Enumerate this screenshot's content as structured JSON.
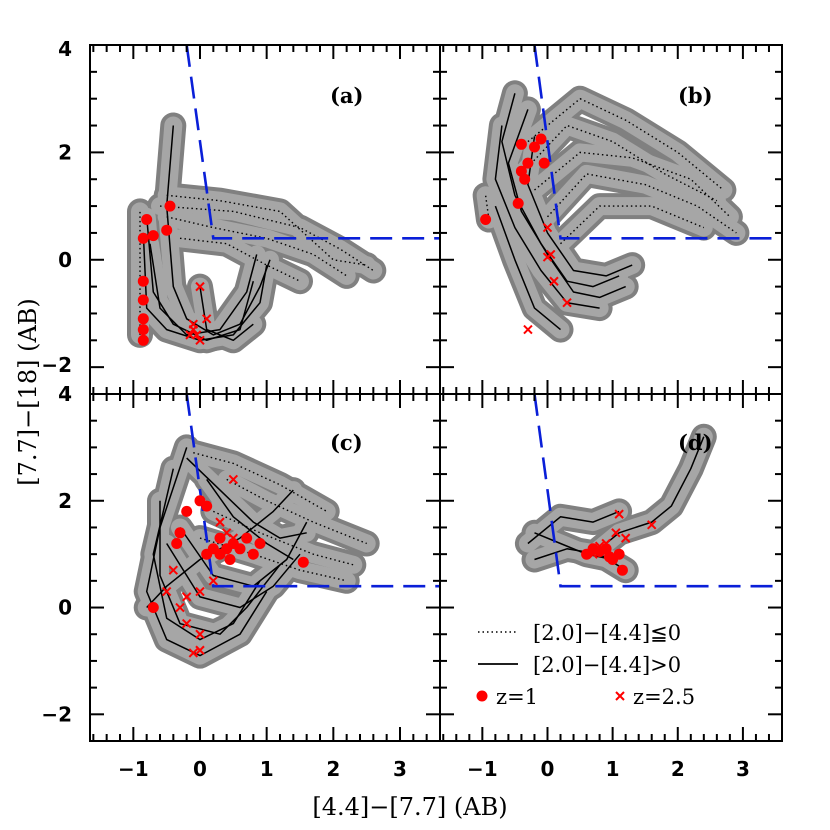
{
  "chart_data": {
    "type": "line",
    "xlabel": "[4.4]−[7.7] (AB)",
    "ylabel": "[7.7]−[18] (AB)",
    "xlim": [
      -1.65,
      3.6
    ],
    "ylim": [
      -2.5,
      4.0
    ],
    "x_ticks": [
      {
        "value": -1,
        "label": "−1"
      },
      {
        "value": 0,
        "label": "0"
      },
      {
        "value": 1,
        "label": "1"
      },
      {
        "value": 2,
        "label": "2"
      },
      {
        "value": 3,
        "label": "3"
      }
    ],
    "y_ticks": [
      {
        "value": -2,
        "label": "−2"
      },
      {
        "value": 0,
        "label": "0"
      },
      {
        "value": 2,
        "label": "2"
      },
      {
        "value": 4,
        "label": "4"
      }
    ],
    "selection_wedge": {
      "description": "dashed blue boundary",
      "color": "#0a1fd8",
      "points": [
        [
          -0.2,
          4.0
        ],
        [
          0.2,
          0.4
        ],
        [
          3.6,
          0.4
        ]
      ]
    },
    "legend": {
      "dotted_label": "[2.0]−[4.4]≦0",
      "solid_label": "[2.0]−[4.4]>0",
      "z1_label": "z=1",
      "z25_label": "z=2.5"
    },
    "colors": {
      "track": "#a6a6a6",
      "track_edge": "#808080",
      "marker": "#ff0000",
      "wedge": "#0a1fd8"
    },
    "panels": [
      {
        "label": "(a)",
        "dotted": [
          [
            [
              -0.5,
              1.2
            ],
            [
              0.3,
              1.1
            ],
            [
              1.2,
              0.9
            ],
            [
              2.0,
              0.0
            ],
            [
              2.5,
              -0.1
            ]
          ],
          [
            [
              -0.6,
              1.0
            ],
            [
              0.5,
              0.9
            ],
            [
              1.5,
              0.6
            ],
            [
              2.1,
              0.2
            ],
            [
              2.6,
              -0.2
            ]
          ],
          [
            [
              -0.5,
              0.8
            ],
            [
              0.2,
              0.6
            ],
            [
              1.0,
              0.4
            ],
            [
              1.7,
              0.1
            ],
            [
              2.2,
              -0.3
            ]
          ],
          [
            [
              -0.3,
              0.4
            ],
            [
              0.4,
              0.3
            ],
            [
              1.0,
              -0.1
            ],
            [
              1.5,
              -0.4
            ]
          ],
          [
            [
              -0.9,
              -1.4
            ],
            [
              -0.9,
              0.9
            ]
          ]
        ],
        "solid": [
          [
            [
              -0.4,
              2.5
            ],
            [
              -0.5,
              1.0
            ],
            [
              -0.4,
              -0.5
            ],
            [
              -0.2,
              -1.1
            ],
            [
              0.2,
              -1.4
            ],
            [
              0.6,
              -1.2
            ],
            [
              0.9,
              -0.5
            ],
            [
              1.05,
              0.0
            ]
          ],
          [
            [
              -0.8,
              0.8
            ],
            [
              -0.7,
              -0.6
            ],
            [
              -0.4,
              -1.2
            ],
            [
              0.1,
              -1.5
            ],
            [
              0.6,
              -1.3
            ],
            [
              0.8,
              -0.4
            ]
          ],
          [
            [
              -0.85,
              0.5
            ],
            [
              -0.8,
              -0.9
            ],
            [
              -0.5,
              -1.3
            ],
            [
              0.0,
              -1.5
            ],
            [
              0.5,
              -1.4
            ],
            [
              0.9,
              -0.8
            ],
            [
              1.0,
              -0.1
            ]
          ],
          [
            [
              -0.75,
              0.3
            ],
            [
              -0.6,
              -0.9
            ],
            [
              -0.2,
              -1.4
            ],
            [
              0.3,
              -1.3
            ],
            [
              0.7,
              -0.6
            ],
            [
              0.85,
              0.1
            ]
          ],
          [
            [
              0.0,
              -0.5
            ],
            [
              0.1,
              -1.3
            ],
            [
              0.5,
              -1.5
            ],
            [
              0.8,
              -1.2
            ]
          ]
        ],
        "z1": [
          [
            -0.85,
            -1.5
          ],
          [
            -0.85,
            -1.3
          ],
          [
            -0.85,
            -1.1
          ],
          [
            -0.85,
            -0.75
          ],
          [
            -0.85,
            -0.4
          ],
          [
            -0.85,
            0.4
          ],
          [
            -0.8,
            0.75
          ],
          [
            -0.7,
            0.45
          ],
          [
            -0.5,
            0.55
          ],
          [
            -0.45,
            1.0
          ]
        ],
        "z25": [
          [
            0.0,
            -0.5
          ],
          [
            -0.1,
            -1.2
          ],
          [
            -0.15,
            -1.4
          ],
          [
            0.0,
            -1.5
          ],
          [
            -0.1,
            -1.3
          ],
          [
            0.1,
            -1.1
          ],
          [
            -0.05,
            -1.4
          ]
        ]
      },
      {
        "label": "(b)",
        "dotted": [
          [
            [
              -0.3,
              2.2
            ],
            [
              0.5,
              3.0
            ],
            [
              1.2,
              2.6
            ],
            [
              2.0,
              2.0
            ],
            [
              2.7,
              1.3
            ]
          ],
          [
            [
              -0.4,
              1.6
            ],
            [
              0.3,
              2.5
            ],
            [
              1.0,
              2.2
            ],
            [
              1.8,
              1.6
            ],
            [
              2.6,
              1.1
            ]
          ],
          [
            [
              -0.2,
              1.3
            ],
            [
              0.5,
              2.0
            ],
            [
              1.3,
              1.9
            ],
            [
              2.2,
              1.5
            ],
            [
              2.8,
              0.8
            ]
          ],
          [
            [
              0.0,
              0.8
            ],
            [
              0.6,
              1.6
            ],
            [
              1.5,
              1.4
            ],
            [
              2.3,
              1.0
            ],
            [
              2.9,
              0.5
            ]
          ],
          [
            [
              0.2,
              0.3
            ],
            [
              0.8,
              1.0
            ],
            [
              1.6,
              1.0
            ],
            [
              2.4,
              0.6
            ]
          ],
          [
            [
              -0.9,
              0.75
            ],
            [
              -0.95,
              1.2
            ]
          ]
        ],
        "solid": [
          [
            [
              -0.5,
              3.1
            ],
            [
              -0.7,
              2.2
            ],
            [
              -0.5,
              1.2
            ],
            [
              -0.1,
              0.3
            ],
            [
              0.3,
              -0.4
            ],
            [
              0.7,
              -0.5
            ],
            [
              1.1,
              -0.3
            ]
          ],
          [
            [
              -0.3,
              2.8
            ],
            [
              -0.6,
              1.8
            ],
            [
              -0.4,
              0.9
            ],
            [
              0.0,
              0.1
            ],
            [
              0.4,
              -0.6
            ],
            [
              0.8,
              -0.7
            ],
            [
              1.2,
              -0.5
            ]
          ],
          [
            [
              -0.7,
              2.5
            ],
            [
              -0.8,
              1.5
            ],
            [
              -0.5,
              0.6
            ],
            [
              -0.1,
              -0.2
            ],
            [
              0.3,
              -0.8
            ],
            [
              0.8,
              -0.9
            ]
          ],
          [
            [
              -0.8,
              1.0
            ],
            [
              -0.5,
              0.0
            ],
            [
              -0.2,
              -0.9
            ],
            [
              0.2,
              -1.3
            ]
          ],
          [
            [
              -0.2,
              2.3
            ],
            [
              -0.3,
              1.4
            ],
            [
              0.0,
              0.5
            ],
            [
              0.4,
              -0.2
            ],
            [
              0.9,
              -0.3
            ],
            [
              1.3,
              -0.1
            ]
          ]
        ],
        "z1": [
          [
            -0.95,
            0.75
          ],
          [
            -0.45,
            1.05
          ],
          [
            -0.35,
            1.5
          ],
          [
            -0.4,
            1.65
          ],
          [
            -0.3,
            1.8
          ],
          [
            -0.2,
            2.1
          ],
          [
            -0.4,
            2.15
          ],
          [
            -0.1,
            2.25
          ],
          [
            -0.05,
            1.8
          ]
        ],
        "z25": [
          [
            0.0,
            0.6
          ],
          [
            0.0,
            0.05
          ],
          [
            0.1,
            -0.4
          ],
          [
            0.3,
            -0.8
          ],
          [
            -0.3,
            -1.3
          ],
          [
            0.05,
            0.1
          ]
        ]
      },
      {
        "label": "(c)",
        "dotted": [
          [
            [
              0.4,
              2.4
            ],
            [
              1.0,
              2.0
            ],
            [
              1.7,
              1.6
            ],
            [
              2.5,
              1.2
            ]
          ],
          [
            [
              0.2,
              1.8
            ],
            [
              0.9,
              1.4
            ],
            [
              1.7,
              1.0
            ],
            [
              2.3,
              0.8
            ]
          ],
          [
            [
              -0.1,
              2.9
            ],
            [
              0.5,
              2.7
            ],
            [
              1.2,
              2.3
            ],
            [
              1.9,
              1.8
            ]
          ],
          [
            [
              0.0,
              1.3
            ],
            [
              0.8,
              1.0
            ],
            [
              1.5,
              0.7
            ],
            [
              2.2,
              0.5
            ]
          ]
        ],
        "solid": [
          [
            [
              -0.2,
              3.0
            ],
            [
              -0.6,
              1.5
            ],
            [
              -0.8,
              0.3
            ],
            [
              -0.5,
              -0.6
            ],
            [
              0.0,
              -0.9
            ],
            [
              0.6,
              -0.5
            ],
            [
              1.0,
              0.3
            ]
          ],
          [
            [
              -0.4,
              2.6
            ],
            [
              -0.7,
              1.0
            ],
            [
              -0.5,
              -0.2
            ],
            [
              0.0,
              -0.6
            ],
            [
              0.5,
              -0.3
            ],
            [
              0.9,
              0.5
            ]
          ],
          [
            [
              -0.6,
              2.0
            ],
            [
              -0.6,
              0.6
            ],
            [
              -0.3,
              -0.3
            ],
            [
              0.3,
              -0.5
            ],
            [
              0.7,
              0.0
            ],
            [
              1.2,
              0.8
            ]
          ],
          [
            [
              -0.3,
              1.5
            ],
            [
              0.2,
              0.6
            ],
            [
              0.8,
              0.4
            ],
            [
              1.3,
              0.9
            ],
            [
              1.6,
              1.6
            ]
          ],
          [
            [
              -0.5,
              1.2
            ],
            [
              0.0,
              0.2
            ],
            [
              0.6,
              0.0
            ],
            [
              1.1,
              0.4
            ],
            [
              1.5,
              1.0
            ]
          ],
          [
            [
              -0.8,
              0.0
            ],
            [
              -0.5,
              0.4
            ],
            [
              0.0,
              0.9
            ],
            [
              0.6,
              1.3
            ],
            [
              1.1,
              1.8
            ],
            [
              1.4,
              2.2
            ]
          ],
          [
            [
              0.1,
              2.4
            ],
            [
              0.5,
              1.7
            ],
            [
              1.0,
              1.2
            ],
            [
              1.4,
              0.9
            ]
          ],
          [
            [
              -0.2,
              2.8
            ],
            [
              0.3,
              2.2
            ],
            [
              0.8,
              1.6
            ],
            [
              1.2,
              1.3
            ],
            [
              1.6,
              1.4
            ]
          ]
        ],
        "z1": [
          [
            -0.7,
            0.0
          ],
          [
            -0.35,
            1.2
          ],
          [
            -0.3,
            1.4
          ],
          [
            -0.2,
            1.8
          ],
          [
            0.0,
            2.0
          ],
          [
            0.1,
            1.9
          ],
          [
            0.1,
            1.0
          ],
          [
            0.2,
            1.1
          ],
          [
            0.3,
            1.0
          ],
          [
            0.4,
            1.1
          ],
          [
            0.5,
            1.2
          ],
          [
            0.6,
            1.1
          ],
          [
            0.7,
            1.3
          ],
          [
            0.8,
            1.0
          ],
          [
            0.9,
            1.2
          ],
          [
            0.3,
            1.3
          ],
          [
            0.45,
            0.9
          ],
          [
            1.55,
            0.85
          ]
        ],
        "z25": [
          [
            0.5,
            2.4
          ],
          [
            -0.5,
            0.3
          ],
          [
            -0.3,
            0.0
          ],
          [
            -0.2,
            -0.3
          ],
          [
            0.0,
            -0.5
          ],
          [
            0.0,
            -0.8
          ],
          [
            -0.1,
            -0.85
          ],
          [
            0.2,
            0.5
          ],
          [
            -0.2,
            0.2
          ],
          [
            0.4,
            1.4
          ],
          [
            0.5,
            1.3
          ],
          [
            0.0,
            0.3
          ],
          [
            -0.4,
            0.7
          ],
          [
            0.3,
            1.6
          ]
        ]
      },
      {
        "label": "(d)",
        "dotted": [],
        "solid": [
          [
            [
              0.7,
              1.0
            ],
            [
              1.1,
              1.4
            ],
            [
              1.6,
              1.6
            ],
            [
              1.9,
              1.9
            ],
            [
              2.2,
              2.6
            ],
            [
              2.4,
              3.2
            ]
          ],
          [
            [
              -0.3,
              1.2
            ],
            [
              0.2,
              1.7
            ],
            [
              0.7,
              1.6
            ],
            [
              1.1,
              1.8
            ]
          ],
          [
            [
              -0.2,
              0.9
            ],
            [
              0.3,
              1.1
            ],
            [
              0.8,
              1.0
            ],
            [
              1.2,
              0.7
            ]
          ],
          [
            [
              -0.2,
              1.4
            ],
            [
              0.2,
              1.2
            ],
            [
              0.6,
              1.0
            ],
            [
              1.0,
              0.9
            ]
          ]
        ],
        "z1": [
          [
            0.6,
            1.0
          ],
          [
            0.7,
            1.1
          ],
          [
            0.8,
            1.05
          ],
          [
            0.9,
            1.1
          ],
          [
            1.0,
            0.9
          ],
          [
            0.95,
            0.95
          ],
          [
            1.1,
            1.0
          ],
          [
            1.15,
            0.7
          ]
        ],
        "z25": [
          [
            1.6,
            1.55
          ],
          [
            1.1,
            1.75
          ],
          [
            0.9,
            1.2
          ],
          [
            0.8,
            1.15
          ],
          [
            0.7,
            1.0
          ],
          [
            1.2,
            1.3
          ],
          [
            1.05,
            1.4
          ]
        ]
      }
    ]
  }
}
